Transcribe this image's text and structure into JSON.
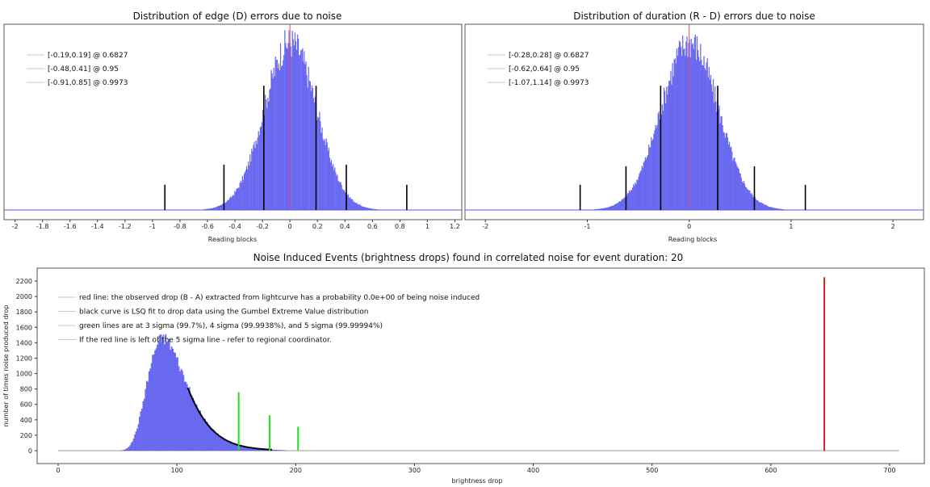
{
  "colors": {
    "histogram": "#5555ee",
    "zero_line": "#e04a6a",
    "sigma_marks": "#000000",
    "fit_curve": "#000000",
    "observed_drop": "#cc2222",
    "sigma_lines_green": "#22dd22",
    "legend_line": "#c8c8c8",
    "baseline": "#9a9a9a"
  },
  "chart_data": [
    {
      "type": "histogram",
      "title": "Distribution of edge (D) errors due to noise",
      "xlabel": "Reading blocks",
      "xlim": [
        -2.08,
        1.25
      ],
      "xticks": [
        -2,
        -1.8,
        -1.6,
        -1.4,
        -1.2,
        -1,
        -0.8,
        -0.6,
        -0.4,
        -0.2,
        0,
        0.2,
        0.4,
        0.6,
        0.8,
        1,
        1.2
      ],
      "center": 0.0,
      "sigma": 0.19,
      "peak_relative": 1.0,
      "intervals": [
        {
          "label": "[-0.19,0.19] @ 0.6827",
          "low": -0.19,
          "high": 0.19,
          "mark_height": 0.74
        },
        {
          "label": "[-0.48,0.41] @ 0.95",
          "low": -0.48,
          "high": 0.41,
          "mark_height": 0.27
        },
        {
          "label": "[-0.91,0.85] @ 0.9973",
          "low": -0.91,
          "high": 0.85,
          "mark_height": 0.15
        }
      ],
      "zero_line": 0
    },
    {
      "type": "histogram",
      "title": "Distribution of duration (R - D) errors due to noise",
      "xlabel": "Reading blocks",
      "xlim": [
        -2.2,
        2.3
      ],
      "xticks": [
        -2,
        -1,
        0,
        1,
        2
      ],
      "center": 0.0,
      "sigma": 0.28,
      "peak_relative": 1.0,
      "intervals": [
        {
          "label": "[-0.28,0.28] @ 0.6827",
          "low": -0.28,
          "high": 0.28,
          "mark_height": 0.74
        },
        {
          "label": "[-0.62,0.64] @ 0.95",
          "low": -0.62,
          "high": 0.64,
          "mark_height": 0.26
        },
        {
          "label": "[-1.07,1.14] @ 0.9973",
          "low": -1.07,
          "high": 1.14,
          "mark_height": 0.15
        }
      ],
      "zero_line": 0
    },
    {
      "type": "histogram",
      "title": "Noise Induced Events (brightness drops) found in correlated noise for event duration: 20",
      "xlabel": "brightness drop",
      "ylabel": "number of times noise produced drop",
      "xlim": [
        -10,
        710
      ],
      "ylim": [
        -100,
        2350
      ],
      "xticks": [
        0,
        100,
        200,
        300,
        400,
        500,
        600,
        700
      ],
      "yticks": [
        0,
        200,
        400,
        600,
        800,
        1000,
        1200,
        1400,
        1600,
        1800,
        2000,
        2200
      ],
      "gumbel": {
        "mode": 88,
        "scale": 16,
        "peak": 1460
      },
      "fit_curve_range": [
        109,
        180
      ],
      "sigma_lines": [
        {
          "x": 152,
          "height": 760
        },
        {
          "x": 178,
          "height": 460
        },
        {
          "x": 202,
          "height": 310
        }
      ],
      "observed_drop": {
        "x": 645,
        "height": 2250
      },
      "legend": [
        "red line: the observed drop (B - A) extracted from lightcurve has a probability 0.0e+00 of being noise induced",
        "black curve is LSQ fit to drop data using the Gumbel Extreme Value distribution",
        "green lines are at 3 sigma (99.7%), 4 sigma (99.9938%), and 5 sigma (99.99994%)",
        "If the red line is left of the 5 sigma line - refer to regional coordinator."
      ]
    }
  ]
}
